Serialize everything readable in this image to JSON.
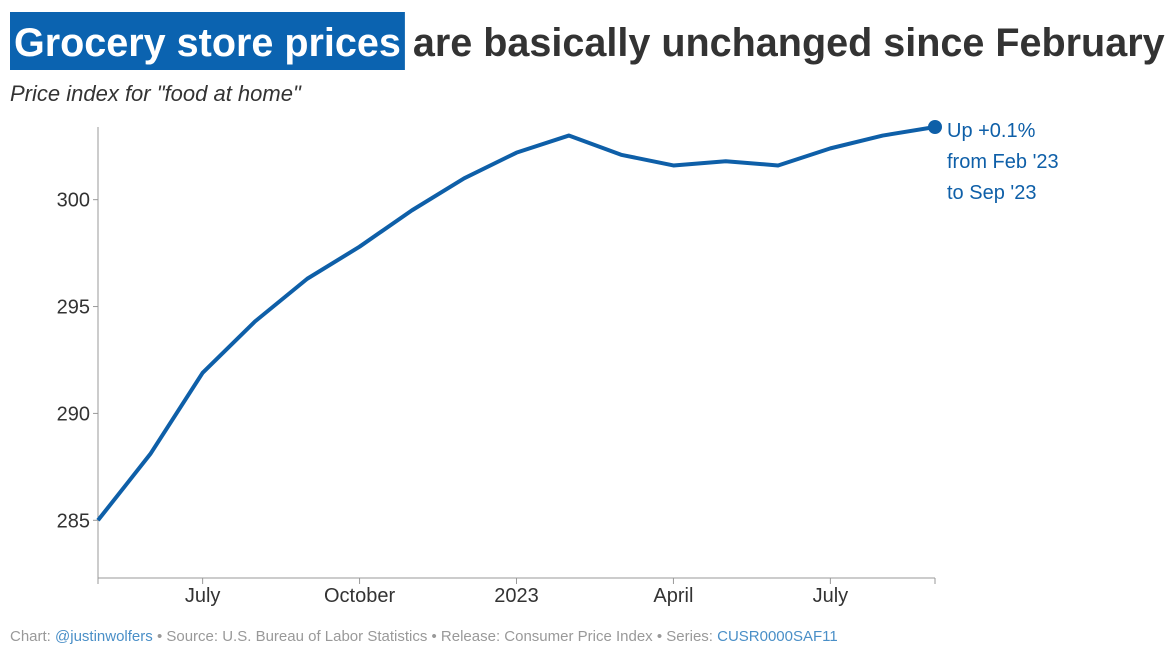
{
  "chart_data": {
    "type": "line",
    "title": {
      "highlight": "Grocery store prices",
      "rest": "are basically unchanged since February"
    },
    "subtitle": "Price index for \"food at home\"",
    "categories": [
      null,
      null,
      "July",
      null,
      null,
      "October",
      null,
      null,
      "2023",
      null,
      null,
      "April",
      null,
      null,
      "July",
      null,
      null
    ],
    "series": [
      {
        "name": "Food at home",
        "color": "#0e5fa8",
        "values": [
          285.0,
          288.1,
          291.9,
          294.3,
          296.3,
          297.8,
          299.5,
          301.0,
          302.2,
          303.0,
          302.1,
          301.6,
          301.8,
          301.6,
          302.4,
          303.0,
          303.4
        ]
      }
    ],
    "ylim": [
      282.3,
      303.4
    ],
    "yticks": [
      285,
      290,
      295,
      300
    ],
    "annotation": [
      "Up +0.1%",
      "from Feb '23",
      "to Sep '23"
    ],
    "source": [
      "Chart: ",
      "@justinwolfers",
      " • Source: U.S. Bureau of Labor Statistics • Release: Consumer Price Index • Series: ",
      "CUSR0000SAF11"
    ]
  }
}
